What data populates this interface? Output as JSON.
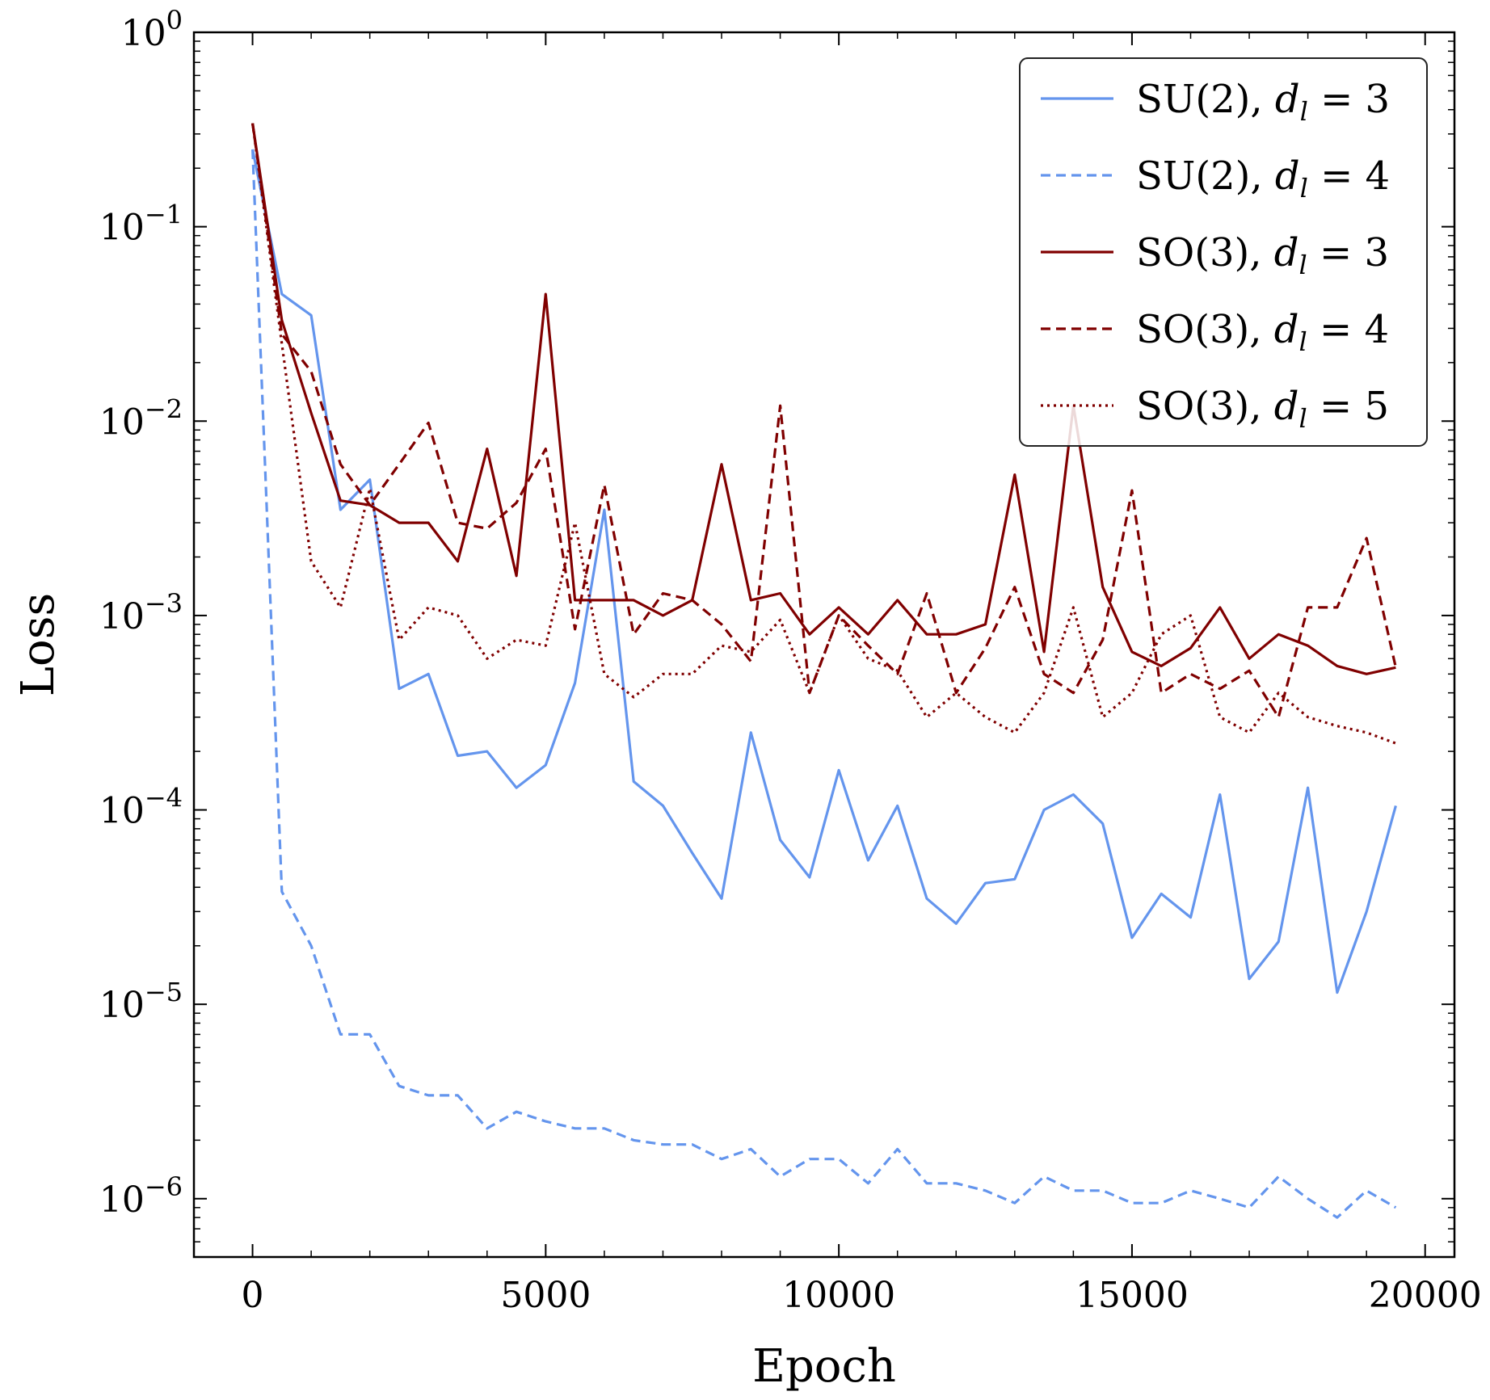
{
  "chart_data": {
    "type": "line",
    "title": "",
    "xlabel": "Epoch",
    "ylabel": "Loss",
    "xlim": [
      -1000,
      20500
    ],
    "ylim_log10": [
      -6.3,
      0
    ],
    "yscale": "log",
    "x_ticks": [
      0,
      5000,
      10000,
      15000,
      20000
    ],
    "x_tick_labels": [
      "0",
      "5000",
      "10000",
      "15000",
      "20000"
    ],
    "y_ticks_exp": [
      0,
      -1,
      -2,
      -3,
      -4,
      -5,
      -6
    ],
    "y_tick_base": "10",
    "y_tick_exponents": [
      "0",
      "−1",
      "−2",
      "−3",
      "−4",
      "−5",
      "−6"
    ],
    "legend_position": "top-right",
    "x": [
      0,
      500,
      1000,
      1500,
      2000,
      2500,
      3000,
      3500,
      4000,
      4500,
      5000,
      5500,
      6000,
      6500,
      7000,
      7500,
      8000,
      8500,
      9000,
      9500,
      10000,
      10500,
      11000,
      11500,
      12000,
      12500,
      13000,
      13500,
      14000,
      14500,
      15000,
      15500,
      16000,
      16500,
      17000,
      17500,
      18000,
      18500,
      19000,
      19500
    ],
    "series": [
      {
        "name": "SU(2), d_l = 3",
        "label_main": "SU(2), ",
        "label_var": "d",
        "label_sub": "l",
        "label_tail": " = 3",
        "color": "#6495ED",
        "style": "solid",
        "values": [
          0.25,
          0.045,
          0.035,
          0.0035,
          0.005,
          0.00042,
          0.0005,
          0.00019,
          0.0002,
          0.00013,
          0.00017,
          0.00045,
          0.0035,
          0.00014,
          0.000105,
          6e-05,
          3.5e-05,
          0.00025,
          7e-05,
          4.5e-05,
          0.00016,
          5.5e-05,
          0.000105,
          3.5e-05,
          2.6e-05,
          4.2e-05,
          4.4e-05,
          0.0001,
          0.00012,
          8.5e-05,
          2.2e-05,
          3.7e-05,
          2.8e-05,
          0.00012,
          1.35e-05,
          2.1e-05,
          0.00013,
          1.15e-05,
          3e-05,
          0.000105
        ]
      },
      {
        "name": "SU(2), d_l = 4",
        "label_main": "SU(2), ",
        "label_var": "d",
        "label_sub": "l",
        "label_tail": " = 4",
        "color": "#6495ED",
        "style": "dashed",
        "values": [
          0.25,
          3.8e-05,
          2e-05,
          7e-06,
          7e-06,
          3.8e-06,
          3.4e-06,
          3.4e-06,
          2.3e-06,
          2.8e-06,
          2.5e-06,
          2.3e-06,
          2.3e-06,
          2e-06,
          1.9e-06,
          1.9e-06,
          1.6e-06,
          1.8e-06,
          1.3e-06,
          1.6e-06,
          1.6e-06,
          1.2e-06,
          1.8e-06,
          1.2e-06,
          1.2e-06,
          1.1e-06,
          9.5e-07,
          1.3e-06,
          1.1e-06,
          1.1e-06,
          9.5e-07,
          9.5e-07,
          1.1e-06,
          1e-06,
          9e-07,
          1.3e-06,
          1e-06,
          8e-07,
          1.1e-06,
          9e-07
        ]
      },
      {
        "name": "SO(3), d_l = 3",
        "label_main": "SO(3), ",
        "label_var": "d",
        "label_sub": "l",
        "label_tail": " = 3",
        "color": "#800000",
        "style": "solid",
        "values": [
          0.34,
          0.033,
          0.011,
          0.0039,
          0.0037,
          0.003,
          0.003,
          0.0019,
          0.0072,
          0.0016,
          0.045,
          0.0012,
          0.0012,
          0.0012,
          0.001,
          0.0012,
          0.006,
          0.0012,
          0.0013,
          0.0008,
          0.0011,
          0.0008,
          0.0012,
          0.0008,
          0.0008,
          0.0009,
          0.0053,
          0.00065,
          0.012,
          0.0014,
          0.00065,
          0.00055,
          0.00068,
          0.0011,
          0.0006,
          0.0008,
          0.0007,
          0.00055,
          0.0005,
          0.00054
        ]
      },
      {
        "name": "SO(3), d_l = 4",
        "label_main": "SO(3), ",
        "label_var": "d",
        "label_sub": "l",
        "label_tail": " = 4",
        "color": "#800000",
        "style": "dashed",
        "values": [
          0.34,
          0.028,
          0.018,
          0.006,
          0.0037,
          0.006,
          0.0098,
          0.003,
          0.0028,
          0.0038,
          0.0072,
          0.00085,
          0.0047,
          0.0008,
          0.0013,
          0.0012,
          0.0009,
          0.00058,
          0.012,
          0.0004,
          0.001,
          0.0007,
          0.0005,
          0.0013,
          0.0004,
          0.00068,
          0.0014,
          0.0005,
          0.0004,
          0.00075,
          0.0044,
          0.0004,
          0.0005,
          0.00042,
          0.00052,
          0.0003,
          0.0011,
          0.0011,
          0.0025,
          0.00054
        ]
      },
      {
        "name": "SO(3), d_l = 5",
        "label_main": "SO(3), ",
        "label_var": "d",
        "label_sub": "l",
        "label_tail": " = 5",
        "color": "#800000",
        "style": "dotted",
        "values": [
          0.34,
          0.025,
          0.0019,
          0.0011,
          0.0045,
          0.00075,
          0.0011,
          0.001,
          0.0006,
          0.00075,
          0.0007,
          0.003,
          0.0005,
          0.00038,
          0.0005,
          0.0005,
          0.0007,
          0.00065,
          0.00095,
          0.0004,
          0.001,
          0.0006,
          0.00052,
          0.0003,
          0.0004,
          0.0003,
          0.00025,
          0.0004,
          0.0011,
          0.0003,
          0.0004,
          0.0008,
          0.001,
          0.0003,
          0.00025,
          0.0004,
          0.0003,
          0.00027,
          0.00025,
          0.00022
        ]
      }
    ]
  }
}
